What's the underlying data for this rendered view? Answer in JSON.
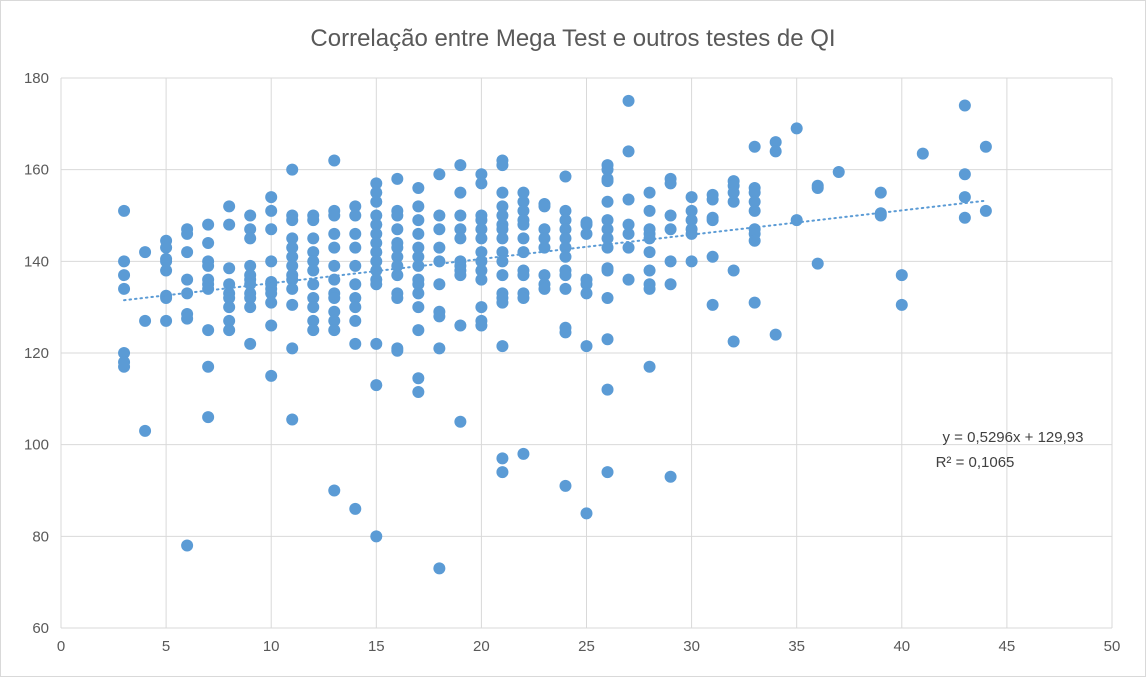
{
  "chart_data": {
    "type": "scatter",
    "title": "Correlação entre Mega Test e outros testes de QI",
    "xlabel": "",
    "ylabel": "",
    "xlim": [
      0,
      50
    ],
    "ylim": [
      60,
      180
    ],
    "xticks": [
      0,
      5,
      10,
      15,
      20,
      25,
      30,
      35,
      40,
      45,
      50
    ],
    "yticks": [
      60,
      80,
      100,
      120,
      140,
      160,
      180
    ],
    "grid": true,
    "legend": "none",
    "marker_color": "#5b9bd5",
    "trendline": {
      "type": "linear",
      "slope": 0.5296,
      "intercept": 129.93,
      "x_range": [
        3,
        44
      ],
      "style": "dotted",
      "color": "#5b9bd5",
      "equation_label": "y = 0,5296x + 129,93",
      "r2_label": "R² = 0,1065"
    },
    "columns": [
      {
        "x": 3,
        "y": [
          151,
          140,
          137,
          134,
          120,
          118,
          117
        ]
      },
      {
        "x": 4,
        "y": [
          142,
          127,
          103
        ]
      },
      {
        "x": 5,
        "y": [
          144.5,
          143,
          140.5,
          140,
          138,
          132.5,
          132,
          127
        ]
      },
      {
        "x": 6,
        "y": [
          147,
          146,
          142,
          136,
          133,
          128.5,
          127.5,
          78
        ]
      },
      {
        "x": 7,
        "y": [
          148,
          144,
          140,
          139,
          136,
          135,
          134,
          125,
          117,
          106
        ]
      },
      {
        "x": 8,
        "y": [
          152,
          148,
          138.5,
          135,
          133,
          132,
          130,
          127,
          125
        ]
      },
      {
        "x": 9,
        "y": [
          150,
          147,
          145,
          139,
          137,
          136,
          135,
          133,
          132,
          130,
          122
        ]
      },
      {
        "x": 10,
        "y": [
          154,
          151,
          147,
          140,
          135.5,
          135,
          134,
          133,
          131,
          126,
          115
        ]
      },
      {
        "x": 11,
        "y": [
          160,
          150,
          149,
          145,
          143,
          141,
          139,
          137,
          136,
          134,
          130.5,
          121,
          105.5
        ]
      },
      {
        "x": 12,
        "y": [
          150,
          149,
          145,
          142,
          140,
          138,
          135,
          132,
          130,
          127,
          125
        ]
      },
      {
        "x": 13,
        "y": [
          162,
          151,
          150,
          146,
          143,
          139,
          136,
          133,
          132,
          129,
          127,
          125,
          90
        ]
      },
      {
        "x": 14,
        "y": [
          152,
          150,
          146,
          143,
          139,
          135,
          132,
          130,
          127,
          122,
          86
        ]
      },
      {
        "x": 15,
        "y": [
          157,
          155,
          153,
          150,
          148,
          146,
          144,
          142,
          140,
          138,
          136,
          135,
          122,
          113,
          80
        ]
      },
      {
        "x": 16,
        "y": [
          158,
          151,
          150,
          147,
          144,
          143,
          141,
          139,
          137,
          133,
          132,
          121,
          120.5
        ]
      },
      {
        "x": 17,
        "y": [
          156,
          152,
          149,
          146,
          143,
          141,
          139,
          136,
          135,
          133,
          130,
          125,
          114.5,
          111.5
        ]
      },
      {
        "x": 18,
        "y": [
          159,
          150,
          147,
          143,
          140,
          135,
          129,
          128,
          121,
          73
        ]
      },
      {
        "x": 19,
        "y": [
          161,
          155,
          150,
          147,
          145,
          140,
          139,
          138,
          137,
          126,
          105
        ]
      },
      {
        "x": 20,
        "y": [
          159,
          157,
          150,
          149,
          147,
          145,
          142,
          140,
          138,
          136,
          130,
          127,
          126
        ]
      },
      {
        "x": 21,
        "y": [
          162,
          161,
          155,
          152,
          150,
          148,
          147,
          145,
          142,
          140,
          137,
          133,
          132,
          131,
          121.5,
          97,
          94
        ]
      },
      {
        "x": 22,
        "y": [
          155,
          153,
          151,
          149,
          148,
          145,
          142,
          138,
          137,
          133,
          132,
          98
        ]
      },
      {
        "x": 23,
        "y": [
          152.5,
          152,
          147,
          145,
          143,
          137,
          135,
          134
        ]
      },
      {
        "x": 24,
        "y": [
          158.5,
          151,
          149,
          147,
          145,
          143,
          141,
          138,
          137,
          134,
          125.5,
          124.5,
          91
        ]
      },
      {
        "x": 25,
        "y": [
          148.5,
          148,
          146,
          136,
          135,
          133,
          121.5,
          85
        ]
      },
      {
        "x": 26,
        "y": [
          161,
          160,
          158,
          157.5,
          153,
          149,
          147,
          145,
          143,
          138.5,
          138,
          132,
          123,
          112,
          94
        ]
      },
      {
        "x": 27,
        "y": [
          175,
          164,
          153.5,
          148,
          146,
          143,
          136
        ]
      },
      {
        "x": 28,
        "y": [
          155,
          151,
          147,
          146,
          145,
          142,
          138,
          135,
          134,
          117
        ]
      },
      {
        "x": 29,
        "y": [
          158,
          157,
          150,
          147,
          140,
          135,
          93
        ]
      },
      {
        "x": 30,
        "y": [
          154,
          151,
          149,
          147,
          146,
          140
        ]
      },
      {
        "x": 31,
        "y": [
          154.5,
          153.5,
          149.5,
          149,
          141,
          130.5
        ]
      },
      {
        "x": 32,
        "y": [
          157.5,
          156.5,
          155,
          153,
          138,
          122.5
        ]
      },
      {
        "x": 33,
        "y": [
          165,
          156,
          155,
          153,
          151,
          147,
          146,
          144.5,
          131
        ]
      },
      {
        "x": 34,
        "y": [
          166,
          164,
          124
        ]
      },
      {
        "x": 35,
        "y": [
          169,
          149
        ]
      },
      {
        "x": 36,
        "y": [
          156.5,
          156,
          139.5
        ]
      },
      {
        "x": 37,
        "y": [
          159.5
        ]
      },
      {
        "x": 39,
        "y": [
          155,
          150.5,
          150
        ]
      },
      {
        "x": 40,
        "y": [
          137,
          130.5
        ]
      },
      {
        "x": 41,
        "y": [
          163.5
        ]
      },
      {
        "x": 43,
        "y": [
          174,
          159,
          154,
          149.5
        ]
      },
      {
        "x": 44,
        "y": [
          165,
          151
        ]
      }
    ]
  }
}
